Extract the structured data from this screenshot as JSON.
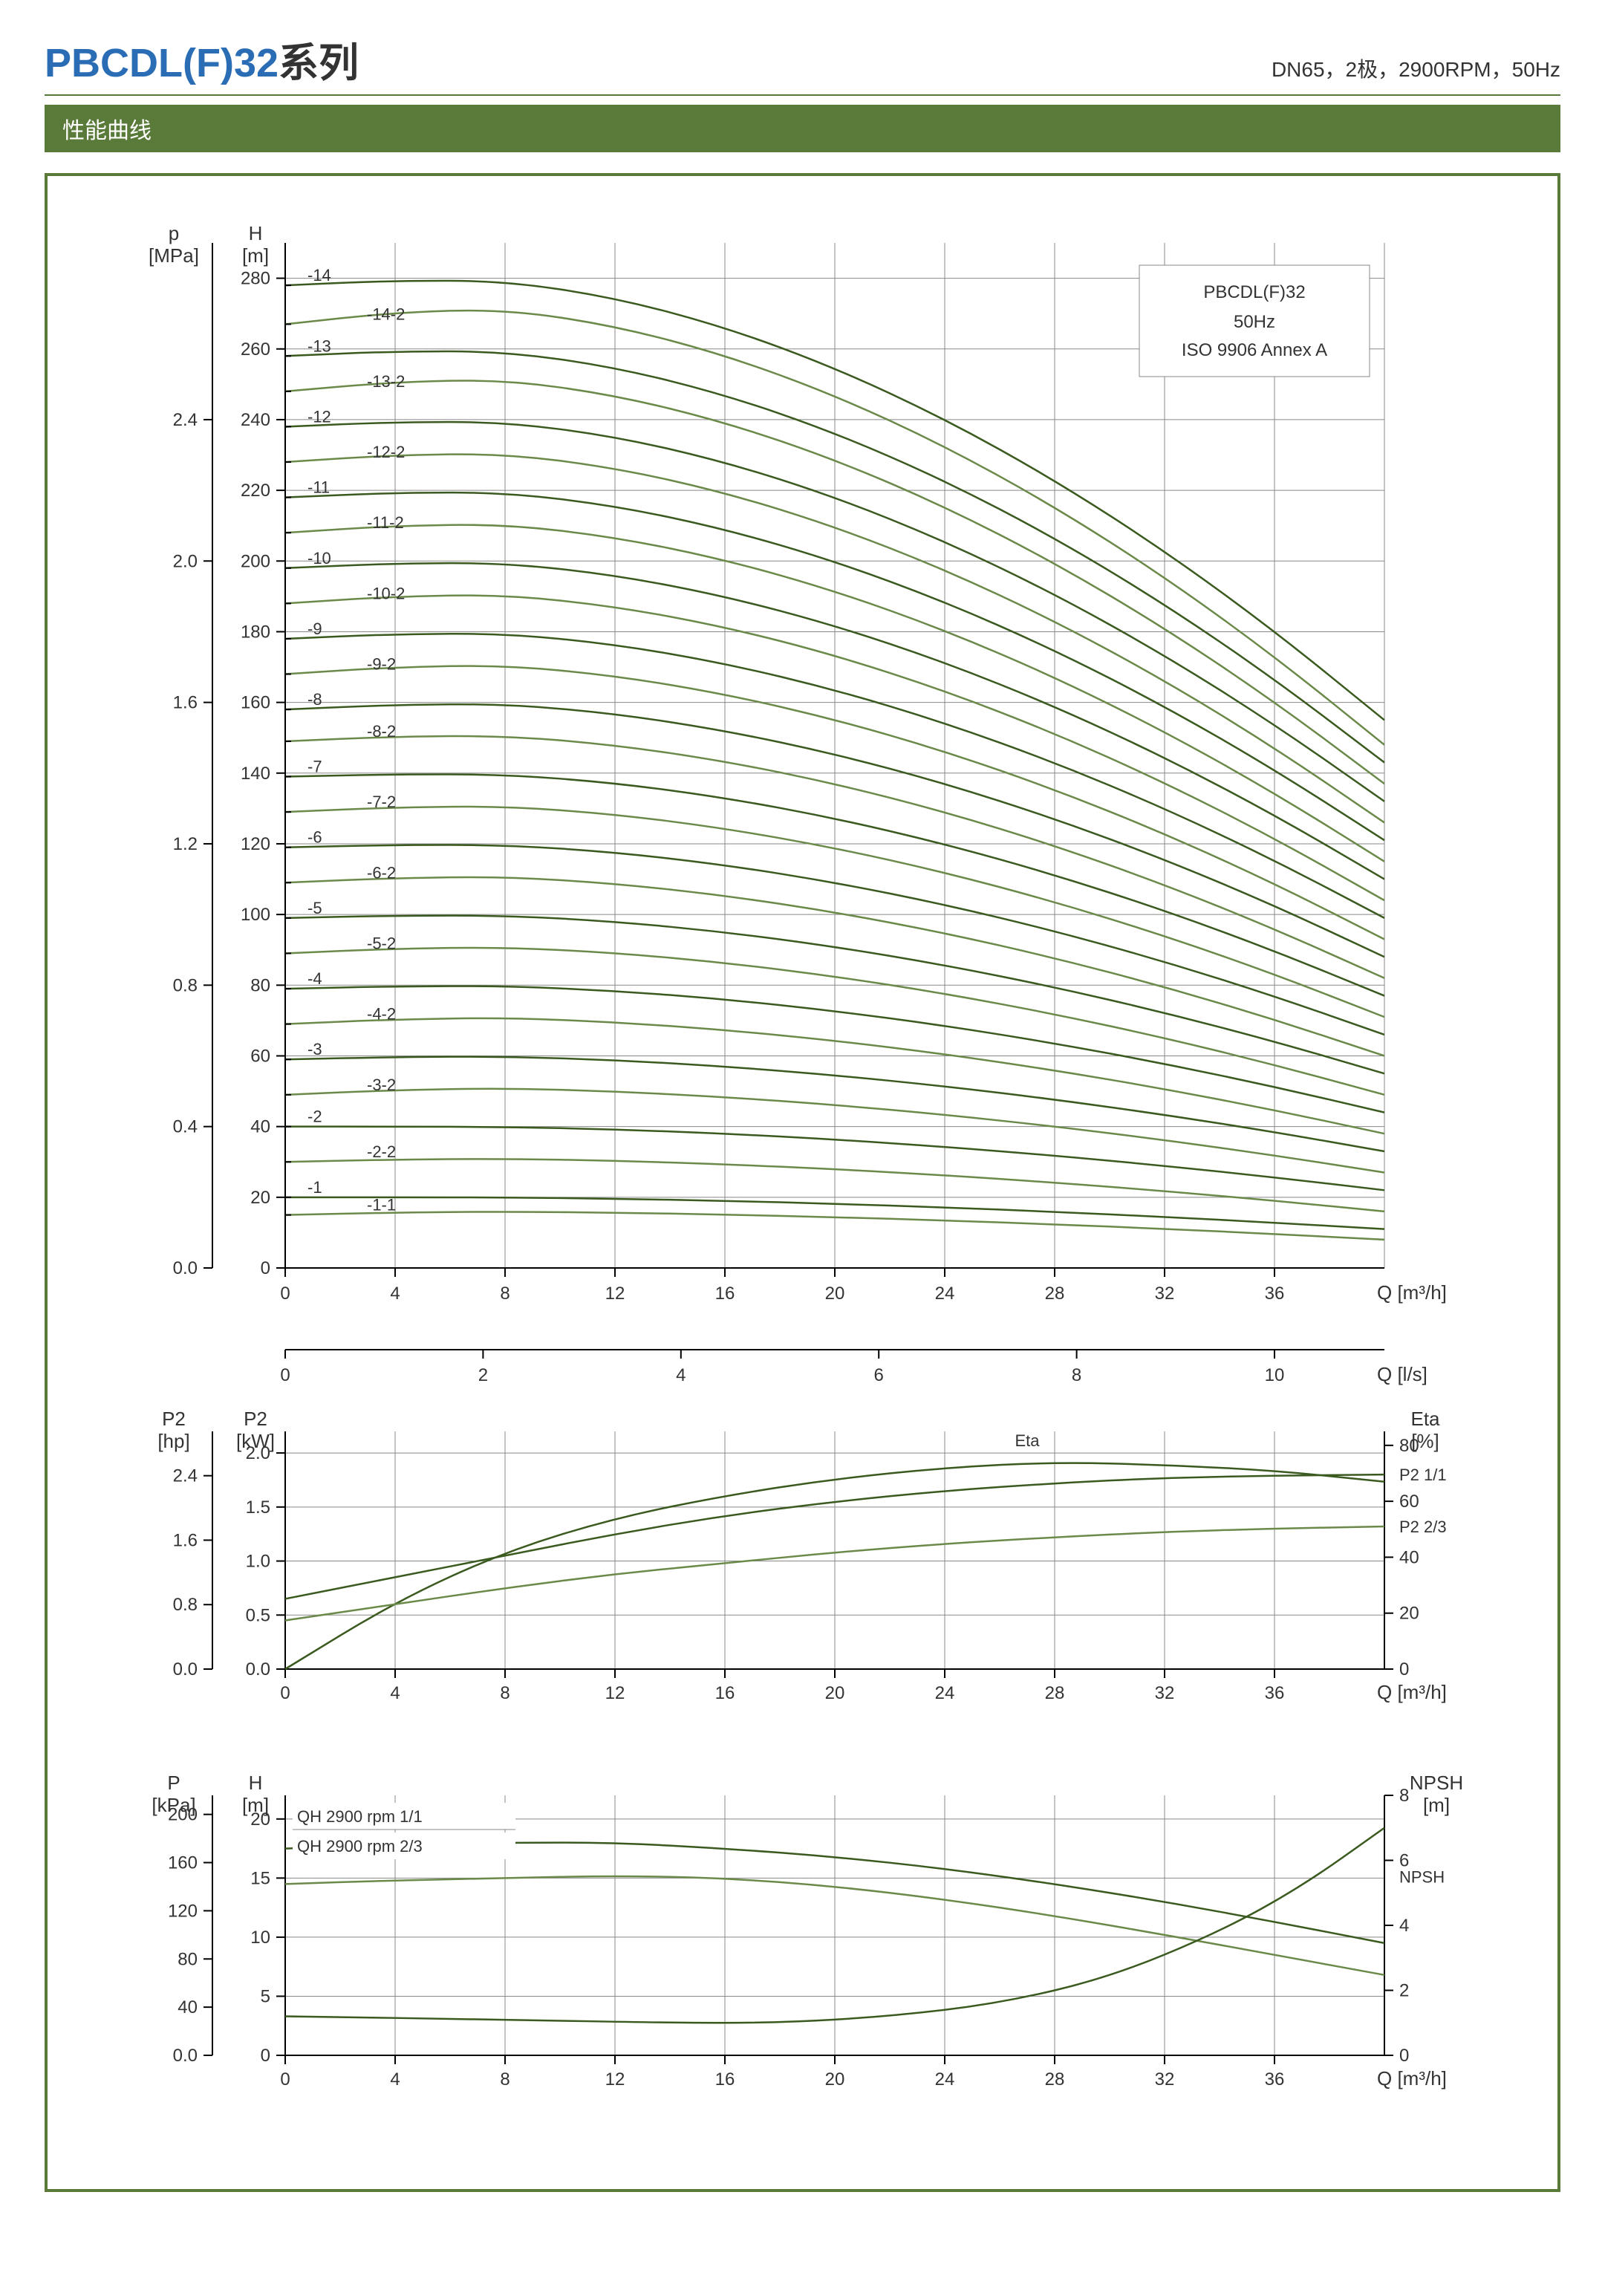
{
  "header": {
    "title_prefix": "PBCDL(F)32",
    "title_suffix": "系列",
    "spec": "DN65，2极，2900RPM，50Hz"
  },
  "section_title": "性能曲线",
  "colors": {
    "frame": "#5a7a3a",
    "curve_dark": "#3a5a1f",
    "curve_light": "#6b8a4a",
    "grid": "#888888",
    "axis": "#000000",
    "bg": "#ffffff",
    "text": "#333333",
    "blue": "#2a6db5"
  },
  "main_chart": {
    "legend": {
      "title": "PBCDL(F)32",
      "sub1": "50Hz",
      "sub2": "ISO 9906 Annex A"
    },
    "x": {
      "label": "Q [m³/h]",
      "min": 0,
      "max": 40,
      "ticks": [
        0,
        4,
        8,
        12,
        16,
        20,
        24,
        28,
        32,
        36
      ]
    },
    "x2": {
      "label": "Q [l/s]",
      "ticks": [
        0,
        2,
        4,
        6,
        8,
        10
      ]
    },
    "y_left_outer": {
      "label_top": "p",
      "label_unit": "[MPa]",
      "ticks": [
        0.0,
        0.4,
        0.8,
        1.2,
        1.6,
        2.0,
        2.4
      ]
    },
    "y_left_inner": {
      "label_top": "H",
      "label_unit": "[m]",
      "min": 0,
      "max": 290,
      "ticks": [
        0,
        20,
        40,
        60,
        80,
        100,
        120,
        140,
        160,
        180,
        200,
        220,
        240,
        260,
        280
      ]
    },
    "curves": [
      {
        "label": "-14",
        "h0": 278,
        "peak_h": 280,
        "hend": 155,
        "color": "#3a5a1f"
      },
      {
        "label": "-14-2",
        "h0": 267,
        "peak_h": 272,
        "hend": 148,
        "color": "#6b8a4a"
      },
      {
        "label": "-13",
        "h0": 258,
        "peak_h": 260,
        "hend": 143,
        "color": "#3a5a1f"
      },
      {
        "label": "-13-2",
        "h0": 248,
        "peak_h": 252,
        "hend": 137,
        "color": "#6b8a4a"
      },
      {
        "label": "-12",
        "h0": 238,
        "peak_h": 240,
        "hend": 132,
        "color": "#3a5a1f"
      },
      {
        "label": "-12-2",
        "h0": 228,
        "peak_h": 231,
        "hend": 126,
        "color": "#6b8a4a"
      },
      {
        "label": "-11",
        "h0": 218,
        "peak_h": 220,
        "hend": 121,
        "color": "#3a5a1f"
      },
      {
        "label": "-11-2",
        "h0": 208,
        "peak_h": 211,
        "hend": 115,
        "color": "#6b8a4a"
      },
      {
        "label": "-10",
        "h0": 198,
        "peak_h": 200,
        "hend": 110,
        "color": "#3a5a1f"
      },
      {
        "label": "-10-2",
        "h0": 188,
        "peak_h": 191,
        "hend": 104,
        "color": "#6b8a4a"
      },
      {
        "label": "-9",
        "h0": 178,
        "peak_h": 180,
        "hend": 99,
        "color": "#3a5a1f"
      },
      {
        "label": "-9-2",
        "h0": 168,
        "peak_h": 171,
        "hend": 93,
        "color": "#6b8a4a"
      },
      {
        "label": "-8",
        "h0": 158,
        "peak_h": 160,
        "hend": 88,
        "color": "#3a5a1f"
      },
      {
        "label": "-8-2",
        "h0": 149,
        "peak_h": 151,
        "hend": 82,
        "color": "#6b8a4a"
      },
      {
        "label": "-7",
        "h0": 139,
        "peak_h": 140,
        "hend": 77,
        "color": "#3a5a1f"
      },
      {
        "label": "-7-2",
        "h0": 129,
        "peak_h": 131,
        "hend": 71,
        "color": "#6b8a4a"
      },
      {
        "label": "-6",
        "h0": 119,
        "peak_h": 120,
        "hend": 66,
        "color": "#3a5a1f"
      },
      {
        "label": "-6-2",
        "h0": 109,
        "peak_h": 111,
        "hend": 60,
        "color": "#6b8a4a"
      },
      {
        "label": "-5",
        "h0": 99,
        "peak_h": 100,
        "hend": 55,
        "color": "#3a5a1f"
      },
      {
        "label": "-5-2",
        "h0": 89,
        "peak_h": 91,
        "hend": 49,
        "color": "#6b8a4a"
      },
      {
        "label": "-4",
        "h0": 79,
        "peak_h": 80,
        "hend": 44,
        "color": "#3a5a1f"
      },
      {
        "label": "-4-2",
        "h0": 69,
        "peak_h": 71,
        "hend": 38,
        "color": "#6b8a4a"
      },
      {
        "label": "-3",
        "h0": 59,
        "peak_h": 60,
        "hend": 33,
        "color": "#3a5a1f"
      },
      {
        "label": "-3-2",
        "h0": 49,
        "peak_h": 51,
        "hend": 27,
        "color": "#6b8a4a"
      },
      {
        "label": "-2",
        "h0": 40,
        "peak_h": 40,
        "hend": 22,
        "color": "#3a5a1f"
      },
      {
        "label": "-2-2",
        "h0": 30,
        "peak_h": 31,
        "hend": 16,
        "color": "#6b8a4a"
      },
      {
        "label": "-1",
        "h0": 20,
        "peak_h": 20,
        "hend": 11,
        "color": "#3a5a1f"
      },
      {
        "label": "-1-1",
        "h0": 15,
        "peak_h": 16,
        "hend": 8,
        "color": "#6b8a4a"
      }
    ]
  },
  "power_chart": {
    "y_left_outer": {
      "label_top": "P2",
      "label_unit": "[hp]",
      "ticks": [
        0.0,
        0.8,
        1.6,
        2.4
      ]
    },
    "y_left_inner": {
      "label_top": "P2",
      "label_unit": "[kW]",
      "min": 0,
      "max": 2.2,
      "ticks": [
        0.0,
        0.5,
        1.0,
        1.5,
        2.0
      ]
    },
    "y_right": {
      "label_top": "Eta",
      "label_unit": "[%]",
      "min": 0,
      "max": 85,
      "ticks": [
        0,
        20,
        40,
        60,
        80
      ]
    },
    "x": {
      "label": "Q [m³/h]",
      "min": 0,
      "max": 40,
      "ticks": [
        0,
        4,
        8,
        12,
        16,
        20,
        24,
        28,
        32,
        36
      ]
    },
    "curves": {
      "eta": {
        "label": "Eta",
        "color": "#3a5a1f",
        "points": [
          [
            0,
            0
          ],
          [
            4,
            24
          ],
          [
            8,
            42
          ],
          [
            12,
            54
          ],
          [
            16,
            62
          ],
          [
            20,
            68
          ],
          [
            24,
            72
          ],
          [
            28,
            74
          ],
          [
            32,
            73
          ],
          [
            36,
            71
          ],
          [
            40,
            67
          ]
        ]
      },
      "p2_11": {
        "label": "P2 1/1",
        "color": "#3a5a1f",
        "points": [
          [
            0,
            0.65
          ],
          [
            4,
            0.85
          ],
          [
            8,
            1.05
          ],
          [
            12,
            1.25
          ],
          [
            16,
            1.42
          ],
          [
            20,
            1.55
          ],
          [
            24,
            1.65
          ],
          [
            28,
            1.72
          ],
          [
            32,
            1.77
          ],
          [
            36,
            1.79
          ],
          [
            40,
            1.8
          ]
        ]
      },
      "p2_23": {
        "label": "P2 2/3",
        "color": "#6b8a4a",
        "points": [
          [
            0,
            0.45
          ],
          [
            4,
            0.6
          ],
          [
            8,
            0.75
          ],
          [
            12,
            0.88
          ],
          [
            16,
            0.98
          ],
          [
            20,
            1.08
          ],
          [
            24,
            1.16
          ],
          [
            28,
            1.22
          ],
          [
            32,
            1.27
          ],
          [
            36,
            1.3
          ],
          [
            40,
            1.32
          ]
        ]
      }
    }
  },
  "npsh_chart": {
    "y_left_outer": {
      "label_top": "P",
      "label_unit": "[kPa]",
      "ticks": [
        0.0,
        40,
        80,
        120,
        160,
        200
      ]
    },
    "y_left_inner": {
      "label_top": "H",
      "label_unit": "[m]",
      "min": 0,
      "max": 22,
      "ticks": [
        0,
        5,
        10,
        15,
        20
      ]
    },
    "y_right": {
      "label_top": "NPSH",
      "label_unit": "[m]",
      "min": 0,
      "max": 8,
      "ticks": [
        0,
        2,
        4,
        6,
        8
      ]
    },
    "x": {
      "label": "Q [m³/h]",
      "min": 0,
      "max": 40,
      "ticks": [
        0,
        4,
        8,
        12,
        16,
        20,
        24,
        28,
        32,
        36
      ]
    },
    "curves": {
      "qh11": {
        "label": "QH 2900 rpm 1/1",
        "color": "#3a5a1f",
        "points": [
          [
            0,
            17.5
          ],
          [
            4,
            17.8
          ],
          [
            8,
            18.0
          ],
          [
            12,
            18.0
          ],
          [
            16,
            17.5
          ],
          [
            20,
            16.8
          ],
          [
            24,
            15.8
          ],
          [
            28,
            14.5
          ],
          [
            32,
            13.0
          ],
          [
            36,
            11.3
          ],
          [
            40,
            9.5
          ]
        ]
      },
      "qh23": {
        "label": "QH 2900 rpm 2/3",
        "color": "#6b8a4a",
        "points": [
          [
            0,
            14.5
          ],
          [
            4,
            14.8
          ],
          [
            8,
            15.0
          ],
          [
            12,
            15.2
          ],
          [
            16,
            15.0
          ],
          [
            20,
            14.3
          ],
          [
            24,
            13.2
          ],
          [
            28,
            11.8
          ],
          [
            32,
            10.2
          ],
          [
            36,
            8.5
          ],
          [
            40,
            6.8
          ]
        ]
      },
      "npsh": {
        "label": "NPSH",
        "color": "#3a5a1f",
        "points": [
          [
            0,
            1.2
          ],
          [
            8,
            1.1
          ],
          [
            14,
            1.0
          ],
          [
            18,
            1.0
          ],
          [
            22,
            1.2
          ],
          [
            26,
            1.6
          ],
          [
            30,
            2.4
          ],
          [
            34,
            3.8
          ],
          [
            37,
            5.2
          ],
          [
            40,
            7.0
          ]
        ]
      }
    }
  }
}
